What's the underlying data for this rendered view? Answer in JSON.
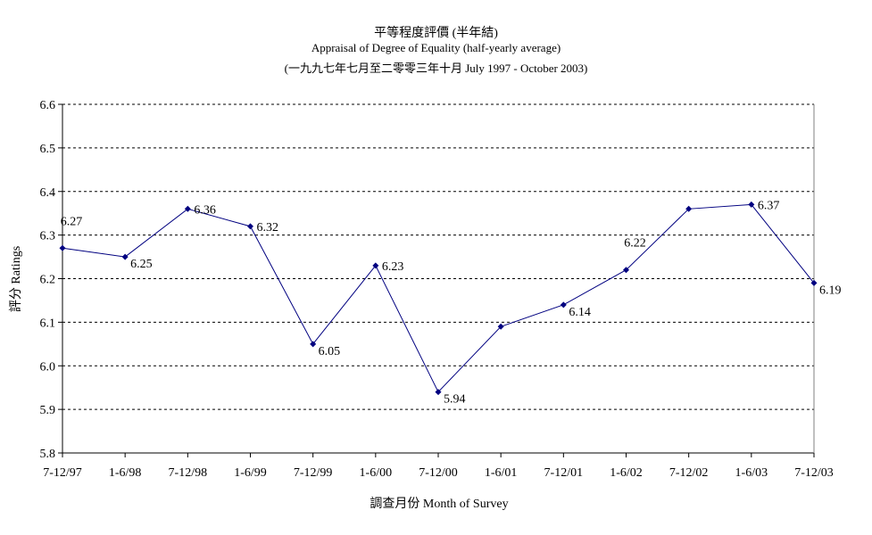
{
  "chart_data": {
    "type": "line",
    "title": "平等程度評價 (半年結)",
    "subtitle": "Appraisal of Degree of Equality (half-yearly average)",
    "subtitle2": "(一九九七年七月至二零零三年十月 July 1997 - October 2003)",
    "xlabel": "調查月份 Month of Survey",
    "ylabel": "評分 Ratings",
    "categories": [
      "7-12/97",
      "1-6/98",
      "7-12/98",
      "1-6/99",
      "7-12/99",
      "1-6/00",
      "7-12/00",
      "1-6/01",
      "7-12/01",
      "1-6/02",
      "7-12/02",
      "1-6/03",
      "7-12/03"
    ],
    "values": [
      6.27,
      6.25,
      6.36,
      6.32,
      6.05,
      6.23,
      5.94,
      6.09,
      6.14,
      6.22,
      6.36,
      6.37,
      6.19
    ],
    "data_labels": [
      "6.27",
      "6.25",
      "6.36",
      "6.32",
      "6.05",
      "6.23",
      "5.94",
      "",
      "6.14",
      "6.22",
      "",
      "6.37",
      "6.19"
    ],
    "yticks": [
      "5.8",
      "5.9",
      "6.0",
      "6.1",
      "6.2",
      "6.3",
      "6.4",
      "6.5",
      "6.6"
    ],
    "ylim": [
      5.8,
      6.6
    ],
    "grid": true,
    "line_color": "#000080",
    "marker_color": "#000080"
  }
}
